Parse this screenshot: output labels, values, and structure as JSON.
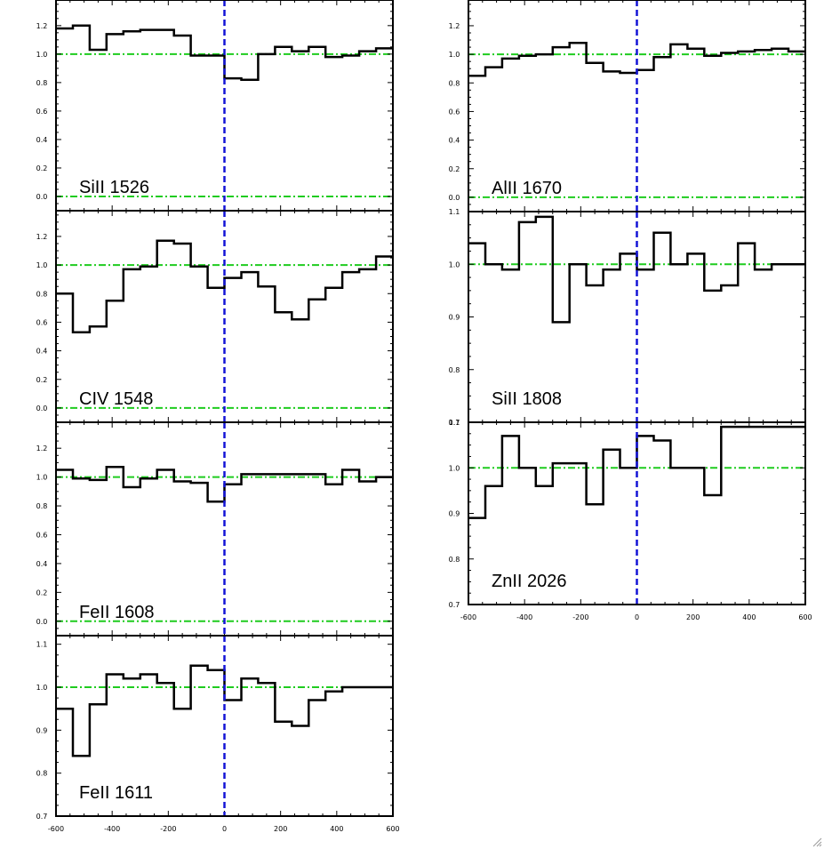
{
  "colors": {
    "spectrum": "#000000",
    "zero_velocity_line": "#1414d6",
    "continuum_line": "#1fcc1f",
    "frame": "#000000",
    "background": "#ffffff"
  },
  "chart_data": [
    {
      "type": "line",
      "title": "",
      "label": "SiII 1526",
      "xlabel": "",
      "ylabel": "",
      "xlim": [
        -600,
        600
      ],
      "ylim": [
        -0.1,
        1.38
      ],
      "yticks": [
        0.0,
        0.2,
        0.4,
        0.6,
        0.8,
        1.0,
        1.2
      ],
      "ytick_labels": [
        "0.0",
        "0.2",
        "0.4",
        "0.6",
        "0.8",
        "1.0",
        "1.2"
      ],
      "xticks": [],
      "xtick_labels": [],
      "reference_lines": {
        "vertical_x": 0,
        "horizontal_y": [
          1.0,
          0.0
        ]
      },
      "step": "mid",
      "x": [
        -570,
        -510,
        -450,
        -390,
        -330,
        -270,
        -210,
        -150,
        -90,
        -30,
        30,
        90,
        150,
        210,
        270,
        330,
        390,
        450,
        510,
        570
      ],
      "y": [
        1.18,
        1.2,
        1.03,
        1.14,
        1.16,
        1.17,
        1.17,
        1.13,
        0.99,
        0.99,
        0.83,
        0.82,
        1.0,
        1.05,
        1.02,
        1.05,
        0.98,
        0.99,
        1.02,
        1.04
      ]
    },
    {
      "type": "line",
      "title": "",
      "label": "CIV 1548",
      "xlabel": "",
      "ylabel": "",
      "xlim": [
        -600,
        600
      ],
      "ylim": [
        -0.1,
        1.38
      ],
      "yticks": [
        0.0,
        0.2,
        0.4,
        0.6,
        0.8,
        1.0,
        1.2
      ],
      "ytick_labels": [
        "0.0",
        "0.2",
        "0.4",
        "0.6",
        "0.8",
        "1.0",
        "1.2"
      ],
      "xticks": [],
      "xtick_labels": [],
      "reference_lines": {
        "vertical_x": 0,
        "horizontal_y": [
          1.0,
          0.0
        ]
      },
      "step": "mid",
      "x": [
        -570,
        -510,
        -450,
        -390,
        -330,
        -270,
        -210,
        -150,
        -90,
        -30,
        30,
        90,
        150,
        210,
        270,
        330,
        390,
        450,
        510,
        570
      ],
      "y": [
        0.8,
        0.53,
        0.57,
        0.75,
        0.97,
        0.99,
        1.17,
        1.15,
        0.99,
        0.84,
        0.91,
        0.95,
        0.85,
        0.67,
        0.62,
        0.76,
        0.84,
        0.95,
        0.97,
        1.06
      ]
    },
    {
      "type": "line",
      "title": "",
      "label": "FeII 1608",
      "xlabel": "",
      "ylabel": "",
      "xlim": [
        -600,
        600
      ],
      "ylim": [
        -0.1,
        1.38
      ],
      "yticks": [
        0.0,
        0.2,
        0.4,
        0.6,
        0.8,
        1.0,
        1.2
      ],
      "ytick_labels": [
        "0.0",
        "0.2",
        "0.4",
        "0.6",
        "0.8",
        "1.0",
        "1.2"
      ],
      "xticks": [],
      "xtick_labels": [],
      "reference_lines": {
        "vertical_x": 0,
        "horizontal_y": [
          1.0,
          0.0
        ]
      },
      "step": "mid",
      "x": [
        -570,
        -510,
        -450,
        -390,
        -330,
        -270,
        -210,
        -150,
        -90,
        -30,
        30,
        90,
        150,
        210,
        270,
        330,
        390,
        450,
        510,
        570
      ],
      "y": [
        1.05,
        0.99,
        0.98,
        1.07,
        0.93,
        0.99,
        1.05,
        0.97,
        0.96,
        0.83,
        0.95,
        1.02,
        1.02,
        1.02,
        1.02,
        1.02,
        0.95,
        1.05,
        0.97,
        1.0
      ]
    },
    {
      "type": "line",
      "title": "",
      "label": "FeII 1611",
      "xlabel": "",
      "ylabel": "",
      "xlim": [
        -600,
        600
      ],
      "ylim": [
        0.7,
        1.12
      ],
      "yticks": [
        0.7,
        0.8,
        0.9,
        1.0,
        1.1
      ],
      "ytick_labels": [
        "0.7",
        "0.8",
        "0.9",
        "1.0",
        "1.1"
      ],
      "xticks": [
        -600,
        -400,
        -200,
        0,
        200,
        400,
        600
      ],
      "xtick_labels": [
        "-600",
        "-400",
        "-200",
        "0",
        "200",
        "400",
        "600"
      ],
      "reference_lines": {
        "vertical_x": 0,
        "horizontal_y": [
          1.0
        ]
      },
      "step": "mid",
      "x": [
        -570,
        -510,
        -450,
        -390,
        -330,
        -270,
        -210,
        -150,
        -90,
        -30,
        30,
        90,
        150,
        210,
        270,
        330,
        390,
        450,
        510,
        570
      ],
      "y": [
        0.95,
        0.84,
        0.96,
        1.03,
        1.02,
        1.03,
        1.01,
        0.95,
        1.05,
        1.04,
        0.97,
        1.02,
        1.01,
        0.92,
        0.91,
        0.97,
        0.99,
        1.0,
        1.0,
        1.0
      ]
    },
    {
      "type": "line",
      "title": "",
      "label": "AlII 1670",
      "xlabel": "",
      "ylabel": "",
      "xlim": [
        -600,
        600
      ],
      "ylim": [
        -0.1,
        1.38
      ],
      "yticks": [
        0.0,
        0.2,
        0.4,
        0.6,
        0.8,
        1.0,
        1.2
      ],
      "ytick_labels": [
        "0.0",
        "0.2",
        "0.4",
        "0.6",
        "0.8",
        "1.0",
        "1.2"
      ],
      "xticks": [],
      "xtick_labels": [],
      "reference_lines": {
        "vertical_x": 0,
        "horizontal_y": [
          1.0,
          0.0
        ]
      },
      "step": "mid",
      "x": [
        -570,
        -510,
        -450,
        -390,
        -330,
        -270,
        -210,
        -150,
        -90,
        -30,
        30,
        90,
        150,
        210,
        270,
        330,
        390,
        450,
        510,
        570
      ],
      "y": [
        0.85,
        0.91,
        0.97,
        0.99,
        1.0,
        1.05,
        1.08,
        0.94,
        0.88,
        0.87,
        0.89,
        0.98,
        1.07,
        1.04,
        0.99,
        1.01,
        1.02,
        1.03,
        1.04,
        1.02
      ]
    },
    {
      "type": "line",
      "title": "",
      "label": "SiII 1808",
      "xlabel": "",
      "ylabel": "",
      "xlim": [
        -600,
        600
      ],
      "ylim": [
        0.7,
        1.1
      ],
      "yticks": [
        0.7,
        0.8,
        0.9,
        1.0,
        1.1
      ],
      "ytick_labels": [
        "0.7",
        "0.8",
        "0.9",
        "1.0",
        "1.1"
      ],
      "xticks": [],
      "xtick_labels": [],
      "reference_lines": {
        "vertical_x": 0,
        "horizontal_y": [
          1.0
        ]
      },
      "step": "mid",
      "x": [
        -570,
        -510,
        -450,
        -390,
        -330,
        -270,
        -210,
        -150,
        -90,
        -30,
        30,
        90,
        150,
        210,
        270,
        330,
        390,
        450,
        510,
        570
      ],
      "y": [
        1.04,
        1.0,
        0.99,
        1.08,
        1.09,
        0.89,
        1.0,
        0.96,
        0.99,
        1.02,
        0.99,
        1.06,
        1.0,
        1.02,
        0.95,
        0.96,
        1.04,
        0.99,
        1.0,
        1.0
      ]
    },
    {
      "type": "line",
      "title": "",
      "label": "ZnII 2026",
      "xlabel": "",
      "ylabel": "",
      "xlim": [
        -600,
        600
      ],
      "ylim": [
        0.7,
        1.1
      ],
      "yticks": [
        0.7,
        0.8,
        0.9,
        1.0,
        1.1
      ],
      "ytick_labels": [
        "0.7",
        "0.8",
        "0.9",
        "1.0",
        "1.1"
      ],
      "xticks": [
        -600,
        -400,
        -200,
        0,
        200,
        400,
        600
      ],
      "xtick_labels": [
        "-600",
        "-400",
        "-200",
        "0",
        "200",
        "400",
        "600"
      ],
      "reference_lines": {
        "vertical_x": 0,
        "horizontal_y": [
          1.0
        ]
      },
      "step": "mid",
      "x": [
        -570,
        -510,
        -450,
        -390,
        -330,
        -270,
        -210,
        -150,
        -90,
        -30,
        30,
        90,
        150,
        210,
        270,
        330,
        390,
        450,
        510,
        570
      ],
      "y": [
        0.89,
        0.96,
        1.07,
        1.0,
        0.96,
        1.01,
        1.01,
        0.92,
        1.04,
        1.0,
        1.07,
        1.06,
        1.0,
        1.0,
        0.94,
        1.09,
        1.09,
        1.09,
        1.09,
        1.09
      ]
    }
  ]
}
